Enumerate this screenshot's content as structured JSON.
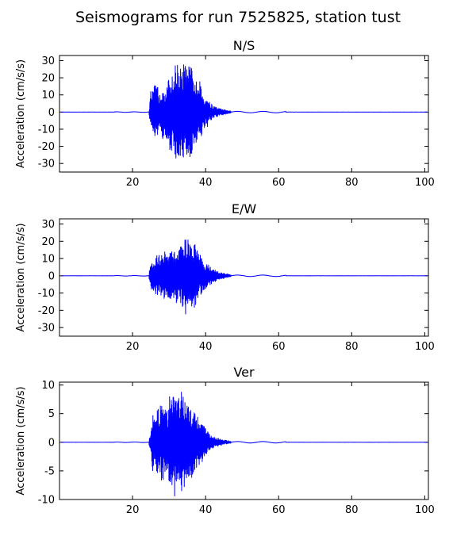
{
  "figure": {
    "suptitle": "Seismograms for run 7525825, station tust"
  },
  "chart_data": [
    {
      "type": "line",
      "title": "N/S",
      "xlabel": "",
      "ylabel": "Acceleration (cm/s/s)",
      "xlim": [
        0,
        101
      ],
      "ylim": [
        -35,
        33
      ],
      "xticks": [
        20,
        40,
        60,
        80,
        100
      ],
      "yticks": [
        -30,
        -20,
        -10,
        0,
        10,
        20,
        30
      ],
      "grid": false,
      "color": "#0000ff",
      "series": [
        {
          "x": [
            24.5,
            25.0,
            25.5,
            26.0,
            26.5,
            27.0,
            27.5,
            28.0,
            28.5,
            29.0,
            29.5,
            30.0,
            30.5,
            31.0,
            31.5,
            32.0,
            32.5,
            33.0,
            33.5,
            34.0,
            34.5,
            35.0,
            35.5,
            36.0,
            36.5,
            37.0,
            37.5,
            38.0,
            38.5,
            39.0,
            39.5,
            40.0,
            40.5,
            41.0,
            41.5,
            42.0,
            43.0,
            44.0,
            45.0,
            46.0,
            47.0
          ],
          "envelope": [
            1,
            13,
            12,
            16,
            15,
            16,
            10,
            17,
            18,
            14,
            16,
            20,
            26,
            19,
            25,
            32,
            26,
            28,
            22,
            30,
            28,
            25,
            27,
            28,
            22,
            20,
            18,
            12,
            19,
            13,
            10,
            9,
            10,
            6,
            5,
            4,
            3,
            2,
            1.5,
            1,
            0.5
          ]
        }
      ]
    },
    {
      "type": "line",
      "title": "E/W",
      "xlabel": "",
      "ylabel": "Acceleration (cm/s/s)",
      "xlim": [
        0,
        101
      ],
      "ylim": [
        -35,
        33
      ],
      "xticks": [
        20,
        40,
        60,
        80,
        100
      ],
      "yticks": [
        -30,
        -20,
        -10,
        0,
        10,
        20,
        30
      ],
      "grid": false,
      "color": "#0000ff",
      "series": [
        {
          "x": [
            24.5,
            25.0,
            25.5,
            26.0,
            26.5,
            27.0,
            27.5,
            28.0,
            28.5,
            29.0,
            29.5,
            30.0,
            30.5,
            31.0,
            31.5,
            32.0,
            32.5,
            33.0,
            33.5,
            34.0,
            34.5,
            35.0,
            35.5,
            36.0,
            36.5,
            37.0,
            37.5,
            38.0,
            38.5,
            39.0,
            39.5,
            40.0,
            40.5,
            41.0,
            41.5,
            42.0,
            43.0,
            44.0,
            45.0,
            46.0,
            47.0
          ],
          "envelope": [
            1,
            9,
            8,
            10,
            12,
            14,
            11,
            12,
            13,
            15,
            12,
            13,
            16,
            13,
            15,
            16,
            14,
            17,
            18,
            21,
            23,
            22,
            19,
            18,
            20,
            19,
            16,
            14,
            12,
            10,
            9,
            8,
            7,
            6,
            5,
            4,
            3,
            2,
            1.5,
            1,
            0.5
          ]
        }
      ]
    },
    {
      "type": "line",
      "title": "Ver",
      "xlabel": "",
      "ylabel": "Acceleration (cm/s/s)",
      "xlim": [
        0,
        101
      ],
      "ylim": [
        -10,
        10.5
      ],
      "xticks": [
        20,
        40,
        60,
        80,
        100
      ],
      "yticks": [
        -10,
        -5,
        0,
        5,
        10
      ],
      "grid": false,
      "color": "#0000ff",
      "series": [
        {
          "x": [
            24.5,
            25.0,
            25.5,
            26.0,
            26.5,
            27.0,
            27.5,
            28.0,
            28.5,
            29.0,
            29.5,
            30.0,
            30.5,
            31.0,
            31.5,
            32.0,
            32.5,
            33.0,
            33.5,
            34.0,
            34.5,
            35.0,
            35.5,
            36.0,
            36.5,
            37.0,
            37.5,
            38.0,
            38.5,
            39.0,
            39.5,
            40.0,
            40.5,
            41.0,
            41.5,
            42.0,
            43.0,
            44.0,
            45.0,
            46.0,
            47.0
          ],
          "envelope": [
            0.5,
            1.5,
            5,
            4,
            5,
            6,
            6.5,
            7,
            7,
            6.5,
            7,
            8,
            8,
            9,
            9.5,
            9,
            8.5,
            8,
            9,
            8,
            7.5,
            7,
            7,
            6.5,
            6,
            6,
            5.5,
            5,
            4,
            3.5,
            3,
            2.5,
            2,
            1.5,
            1.2,
            1,
            0.8,
            0.6,
            0.4,
            0.3,
            0.2
          ]
        }
      ]
    }
  ]
}
